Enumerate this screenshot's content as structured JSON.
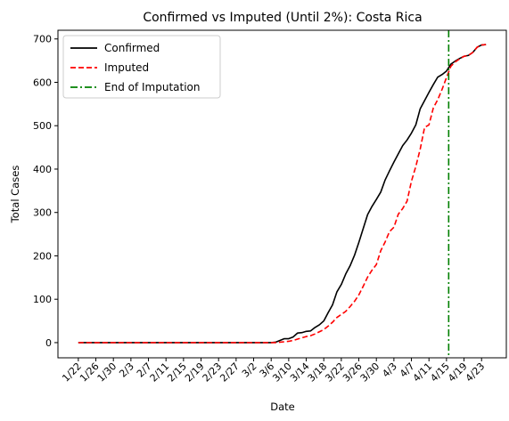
{
  "chart_data": {
    "type": "line",
    "title": "Confirmed vs Imputed (Until 2%): Costa Rica",
    "xlabel": "Date",
    "ylabel": "Total Cases",
    "ylim": [
      -35,
      720
    ],
    "yticks": [
      0,
      100,
      200,
      300,
      400,
      500,
      600,
      700
    ],
    "x_start_date": "1/22",
    "xticks": [
      0,
      4,
      8,
      12,
      16,
      20,
      24,
      28,
      32,
      36,
      40,
      44,
      48,
      52,
      56,
      60,
      64,
      68,
      72,
      76,
      80,
      84,
      88,
      92
    ],
    "xtick_labels": [
      "1/22",
      "1/26",
      "1/30",
      "2/3",
      "2/7",
      "2/11",
      "2/15",
      "2/19",
      "2/23",
      "2/27",
      "3/2",
      "3/6",
      "3/10",
      "3/14",
      "3/18",
      "3/22",
      "3/26",
      "3/30",
      "4/3",
      "4/7",
      "4/11",
      "4/15",
      "4/19",
      "4/23"
    ],
    "legend_position": "top-left",
    "grid": false,
    "series": [
      {
        "name": "Confirmed",
        "color": "#000000",
        "dash": "solid",
        "points": [
          [
            0,
            0
          ],
          [
            10,
            0
          ],
          [
            20,
            0
          ],
          [
            30,
            0
          ],
          [
            40,
            0
          ],
          [
            44,
            0
          ],
          [
            45,
            1
          ],
          [
            46,
            5
          ],
          [
            47,
            9
          ],
          [
            48,
            9
          ],
          [
            49,
            13
          ],
          [
            50,
            22
          ],
          [
            51,
            23
          ],
          [
            52,
            26
          ],
          [
            53,
            27
          ],
          [
            54,
            35
          ],
          [
            55,
            41
          ],
          [
            56,
            50
          ],
          [
            57,
            69
          ],
          [
            58,
            87
          ],
          [
            59,
            117
          ],
          [
            60,
            134
          ],
          [
            61,
            158
          ],
          [
            62,
            177
          ],
          [
            63,
            201
          ],
          [
            64,
            231
          ],
          [
            65,
            263
          ],
          [
            66,
            295
          ],
          [
            67,
            314
          ],
          [
            68,
            330
          ],
          [
            69,
            347
          ],
          [
            70,
            375
          ],
          [
            71,
            396
          ],
          [
            72,
            416
          ],
          [
            73,
            435
          ],
          [
            74,
            454
          ],
          [
            75,
            467
          ],
          [
            76,
            483
          ],
          [
            77,
            502
          ],
          [
            78,
            539
          ],
          [
            79,
            558
          ],
          [
            80,
            577
          ],
          [
            81,
            595
          ],
          [
            82,
            612
          ],
          [
            83,
            618
          ],
          [
            84,
            626
          ],
          [
            85,
            642
          ],
          [
            86,
            649
          ],
          [
            87,
            655
          ],
          [
            88,
            660
          ],
          [
            89,
            662
          ],
          [
            90,
            669
          ],
          [
            91,
            681
          ],
          [
            92,
            686
          ],
          [
            93,
            687
          ]
        ]
      },
      {
        "name": "Imputed",
        "color": "#ff0000",
        "dash": "dashed",
        "points": [
          [
            0,
            0
          ],
          [
            10,
            0
          ],
          [
            20,
            0
          ],
          [
            30,
            0
          ],
          [
            40,
            0
          ],
          [
            45,
            0
          ],
          [
            46,
            1
          ],
          [
            47,
            2
          ],
          [
            48,
            3
          ],
          [
            49,
            5
          ],
          [
            50,
            8
          ],
          [
            51,
            11
          ],
          [
            52,
            14
          ],
          [
            53,
            16
          ],
          [
            54,
            20
          ],
          [
            55,
            25
          ],
          [
            56,
            30
          ],
          [
            57,
            38
          ],
          [
            58,
            47
          ],
          [
            59,
            58
          ],
          [
            60,
            65
          ],
          [
            61,
            72
          ],
          [
            62,
            83
          ],
          [
            63,
            95
          ],
          [
            64,
            110
          ],
          [
            65,
            130
          ],
          [
            66,
            151
          ],
          [
            67,
            167
          ],
          [
            68,
            180
          ],
          [
            69,
            212
          ],
          [
            70,
            232
          ],
          [
            71,
            256
          ],
          [
            72,
            266
          ],
          [
            73,
            296
          ],
          [
            74,
            309
          ],
          [
            75,
            326
          ],
          [
            76,
            372
          ],
          [
            77,
            406
          ],
          [
            78,
            446
          ],
          [
            79,
            496
          ],
          [
            80,
            502
          ],
          [
            81,
            541
          ],
          [
            82,
            560
          ],
          [
            83,
            584
          ],
          [
            84,
            611
          ],
          [
            85,
            637
          ],
          [
            86,
            647
          ],
          [
            87,
            654
          ],
          [
            88,
            660
          ],
          [
            89,
            662
          ],
          [
            90,
            669
          ],
          [
            91,
            681
          ],
          [
            92,
            686
          ],
          [
            93,
            687
          ]
        ]
      },
      {
        "name": "End of Imputation",
        "color": "#008000",
        "dash": "dashdot",
        "vertical_x": 84.5
      }
    ]
  }
}
